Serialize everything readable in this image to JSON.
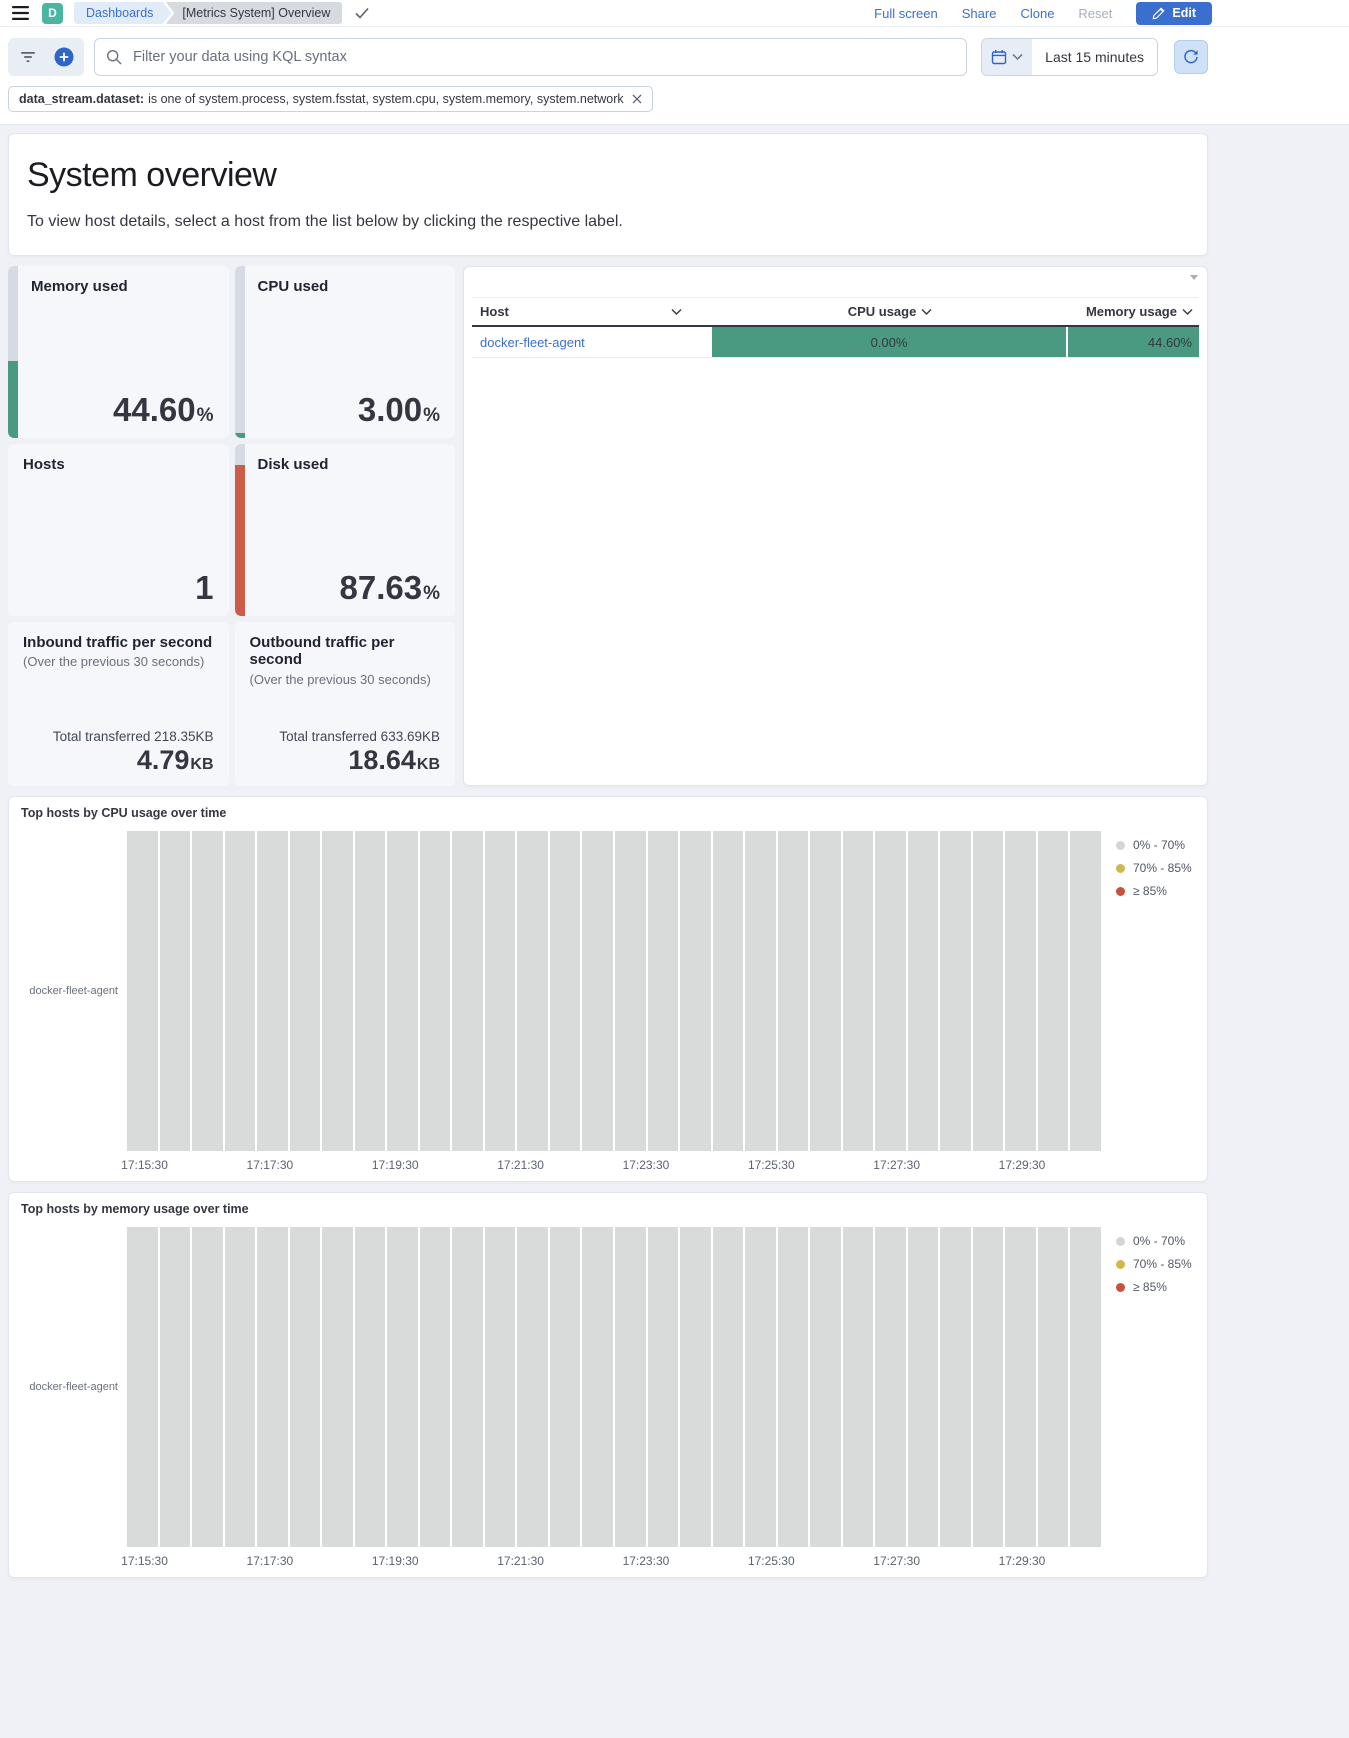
{
  "colors": {
    "primary": "#3a6fd0",
    "green": "#4a9a82",
    "red": "#cd5b45"
  },
  "header": {
    "logo_letter": "D",
    "breadcrumb_dashboards": "Dashboards",
    "breadcrumb_current": "[Metrics System] Overview",
    "actions": {
      "full_screen": "Full screen",
      "share": "Share",
      "clone": "Clone",
      "reset": "Reset",
      "edit": "Edit"
    }
  },
  "query_bar": {
    "search_placeholder": "Filter your data using KQL syntax",
    "time_range": "Last 15 minutes"
  },
  "filter_pill": {
    "field": "data_stream.dataset:",
    "condition": "is one of system.process, system.fsstat, system.cpu, system.memory, system.network"
  },
  "overview": {
    "title": "System overview",
    "description": "To view host details, select a host from the list below by clicking the respective label."
  },
  "metric_cards": {
    "memory": {
      "title": "Memory used",
      "value": "44.60",
      "unit": "%",
      "fill": 44.6,
      "color_key": "green"
    },
    "cpu": {
      "title": "CPU used",
      "value": "3.00",
      "unit": "%",
      "fill": 3,
      "color_key": "green"
    },
    "hosts": {
      "title": "Hosts",
      "value": "1",
      "unit": ""
    },
    "disk": {
      "title": "Disk used",
      "value": "87.63",
      "unit": "%",
      "fill": 87.6,
      "color_key": "red"
    },
    "inbound": {
      "title": "Inbound traffic per second",
      "subtitle": "(Over the previous 30 seconds)",
      "total_label": "Total transferred 218.35KB",
      "value": "4.79",
      "unit": "KB"
    },
    "outbound": {
      "title": "Outbound traffic per second",
      "subtitle": "(Over the previous 30 seconds)",
      "total_label": "Total transferred 633.69KB",
      "value": "18.64",
      "unit": "KB"
    }
  },
  "host_table": {
    "columns": [
      {
        "label": "Host"
      },
      {
        "label": "CPU usage"
      },
      {
        "label": "Memory usage"
      }
    ],
    "rows": [
      {
        "host": "docker-fleet-agent",
        "cpu": "0.00%",
        "memory": "44.60%"
      }
    ]
  },
  "charts": [
    {
      "type": "heatmap",
      "title": "Top hosts by CPU usage over time",
      "row_label": "docker-fleet-agent",
      "x_ticks": [
        "17:15:30",
        "17:17:30",
        "17:19:30",
        "17:21:30",
        "17:23:30",
        "17:25:30",
        "17:27:30",
        "17:29:30"
      ],
      "legend": [
        {
          "label": "0% - 70%",
          "color": "#d3d6d6"
        },
        {
          "label": "70% - 85%",
          "color": "#d2b74c"
        },
        {
          "label": "≥ 85%",
          "color": "#c8503c"
        }
      ],
      "columns": 30,
      "cell_color": "#d9dbdb",
      "all_cells_band": "0% - 70%"
    },
    {
      "type": "heatmap",
      "title": "Top hosts by memory usage over time",
      "row_label": "docker-fleet-agent",
      "x_ticks": [
        "17:15:30",
        "17:17:30",
        "17:19:30",
        "17:21:30",
        "17:23:30",
        "17:25:30",
        "17:27:30",
        "17:29:30"
      ],
      "legend": [
        {
          "label": "0% - 70%",
          "color": "#d3d6d6"
        },
        {
          "label": "70% - 85%",
          "color": "#d2b74c"
        },
        {
          "label": "≥ 85%",
          "color": "#c8503c"
        }
      ],
      "columns": 30,
      "cell_color": "#d9dbdb",
      "all_cells_band": "0% - 70%"
    }
  ]
}
